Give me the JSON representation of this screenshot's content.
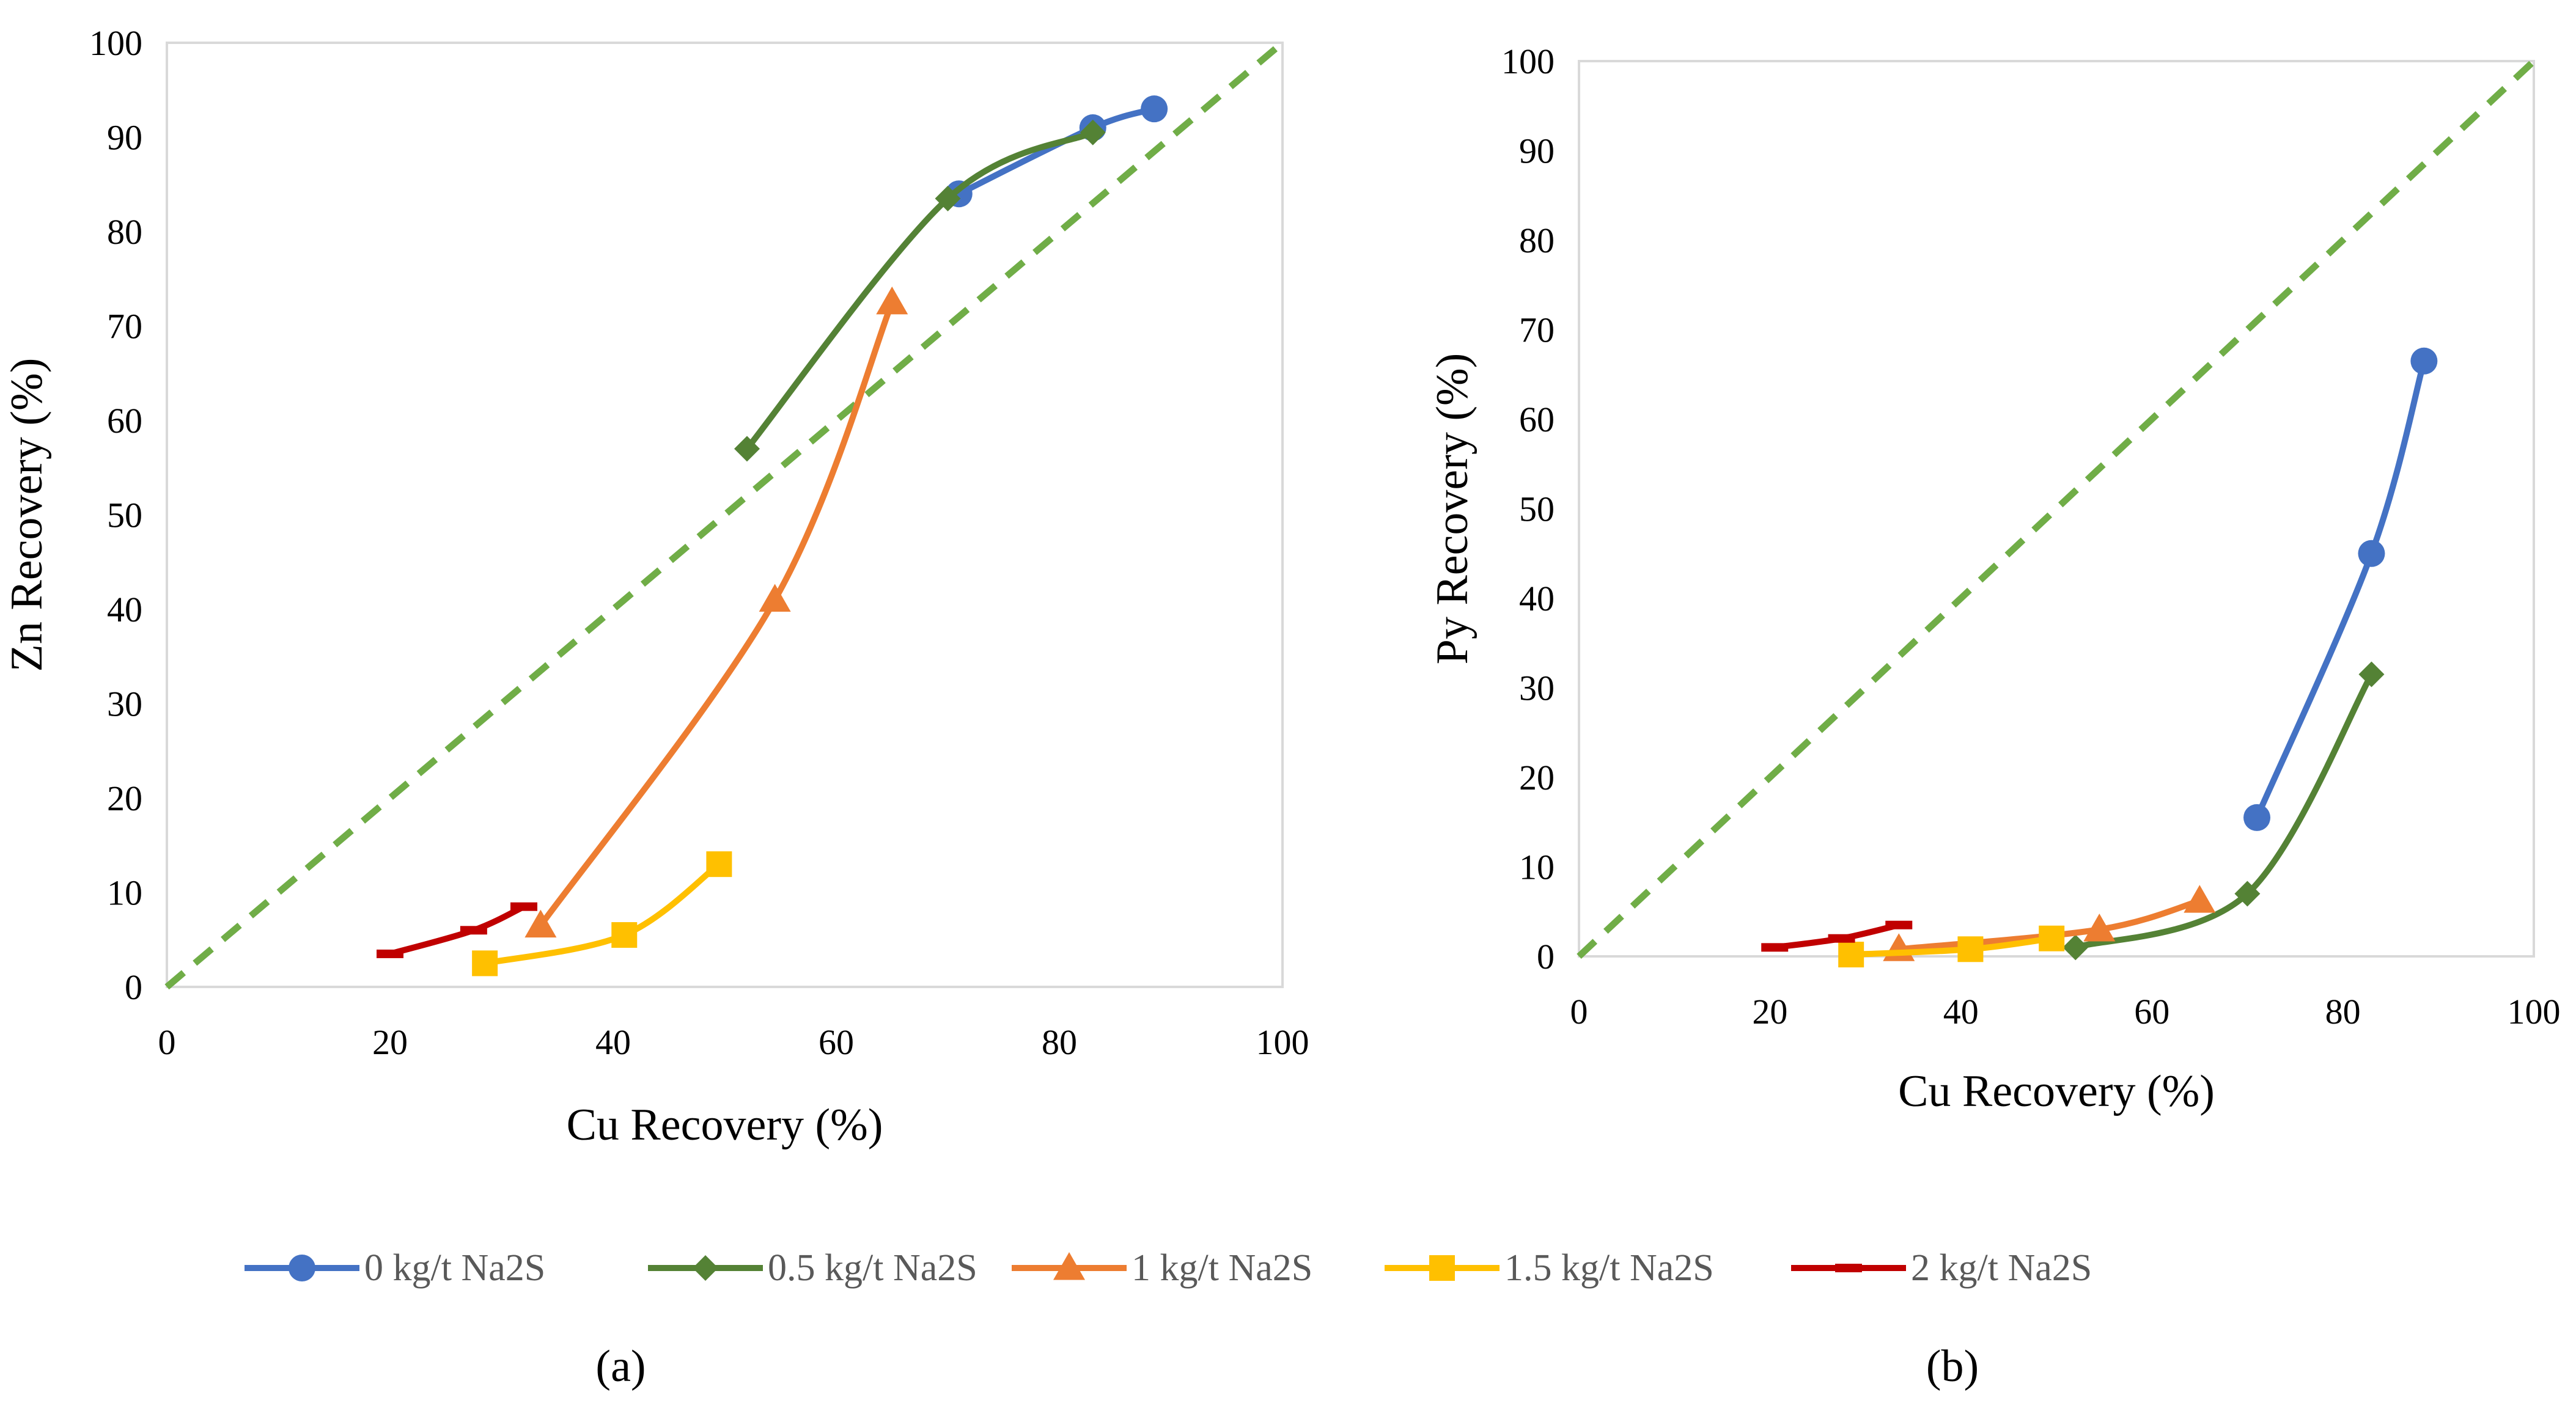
{
  "figure": {
    "legend": [
      {
        "label": "0 kg/t Na2S",
        "series": 0
      },
      {
        "label": "0.5 kg/t Na2S",
        "series": 1
      },
      {
        "label": "1 kg/t Na2S",
        "series": 2
      },
      {
        "label": "1.5 kg/t Na2S",
        "series": 3
      },
      {
        "label": "2 kg/t Na2S",
        "series": 4
      }
    ],
    "legend_position": "bottom-center"
  },
  "chart_data": [
    {
      "type": "line",
      "panel_caption": "(a)",
      "xlabel": "Cu Recovery (%)",
      "ylabel": "Zn Recovery (%)",
      "xlim": [
        0,
        100
      ],
      "ylim": [
        0,
        100
      ],
      "xticks": [
        "0",
        "20",
        "40",
        "60",
        "80",
        "100"
      ],
      "yticks": [
        "0",
        "10",
        "20",
        "30",
        "40",
        "50",
        "60",
        "70",
        "80",
        "90",
        "100"
      ],
      "grid": false,
      "reference_line": {
        "x": [
          0,
          100
        ],
        "y": [
          0,
          100
        ],
        "color": "#70AD47",
        "style": "dashed"
      },
      "series": [
        {
          "name": "0 kg/t Na2S",
          "color": "#4472C4",
          "marker": "circle",
          "x": [
            71,
            83,
            88.5
          ],
          "y": [
            84,
            91,
            93
          ]
        },
        {
          "name": "0.5 kg/t Na2S",
          "color": "#548235",
          "marker": "diamond",
          "x": [
            52,
            70,
            83
          ],
          "y": [
            57,
            83.5,
            90.5
          ]
        },
        {
          "name": "1 kg/t Na2S",
          "color": "#ED7D31",
          "marker": "triangle",
          "x": [
            33.5,
            54.5,
            65
          ],
          "y": [
            6.5,
            41,
            72.5
          ]
        },
        {
          "name": "1.5 kg/t Na2S",
          "color": "#FFC000",
          "marker": "square",
          "x": [
            28.5,
            41,
            49.5
          ],
          "y": [
            2.5,
            5.5,
            13
          ]
        },
        {
          "name": "2 kg/t Na2S",
          "color": "#C00000",
          "marker": "dash",
          "x": [
            20,
            27.5,
            32
          ],
          "y": [
            3.5,
            6,
            8.5
          ]
        }
      ]
    },
    {
      "type": "line",
      "panel_caption": "(b)",
      "xlabel": "Cu Recovery (%)",
      "ylabel": "Py Recovery (%)",
      "xlim": [
        0,
        100
      ],
      "ylim": [
        0,
        100
      ],
      "xticks": [
        "0",
        "20",
        "40",
        "60",
        "80",
        "100"
      ],
      "yticks": [
        "0",
        "10",
        "20",
        "30",
        "40",
        "50",
        "60",
        "70",
        "80",
        "90",
        "100"
      ],
      "grid": false,
      "reference_line": {
        "x": [
          0,
          100
        ],
        "y": [
          0,
          100
        ],
        "color": "#70AD47",
        "style": "dashed"
      },
      "series": [
        {
          "name": "0 kg/t Na2S",
          "color": "#4472C4",
          "marker": "circle",
          "x": [
            71,
            83,
            88.5
          ],
          "y": [
            15.5,
            45,
            66.5
          ]
        },
        {
          "name": "0.5 kg/t Na2S",
          "color": "#548235",
          "marker": "diamond",
          "x": [
            52,
            70,
            83
          ],
          "y": [
            1,
            7,
            31.5
          ]
        },
        {
          "name": "1 kg/t Na2S",
          "color": "#ED7D31",
          "marker": "triangle",
          "x": [
            33.5,
            54.5,
            65
          ],
          "y": [
            0.8,
            3,
            6.2
          ]
        },
        {
          "name": "1.5 kg/t Na2S",
          "color": "#FFC000",
          "marker": "square",
          "x": [
            28.5,
            41,
            49.5
          ],
          "y": [
            0.2,
            0.8,
            2
          ]
        },
        {
          "name": "2 kg/t Na2S",
          "color": "#C00000",
          "marker": "dash",
          "x": [
            20.5,
            27.5,
            33.5
          ],
          "y": [
            1,
            2,
            3.5
          ]
        }
      ]
    }
  ]
}
